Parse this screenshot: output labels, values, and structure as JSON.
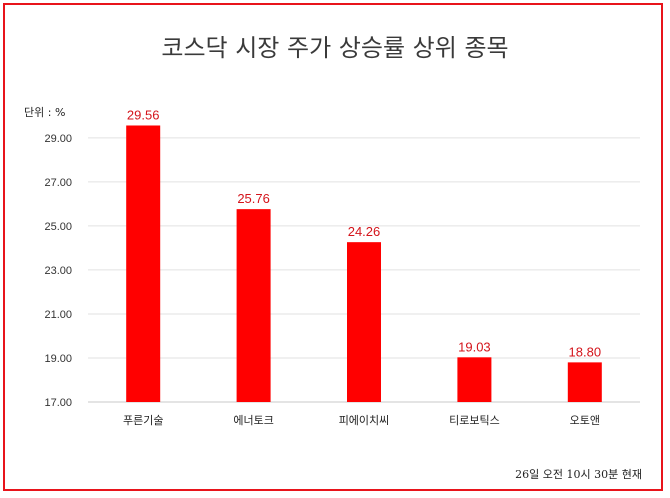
{
  "chart_data": {
    "type": "bar",
    "title": "코스닥 시장 주가 상승률 상위 종목",
    "unit_label": "단위 : %",
    "footnote": "26일 오전 10시 30분 현재",
    "categories": [
      "푸른기술",
      "에너토크",
      "피에이치씨",
      "티로보틱스",
      "오토앤"
    ],
    "values": [
      29.56,
      25.76,
      24.26,
      19.03,
      18.8
    ],
    "value_labels": [
      "29.56",
      "25.76",
      "24.26",
      "19.03",
      "18.80"
    ],
    "ylim": [
      17,
      29.9
    ],
    "yticks": [
      17,
      19,
      21,
      23,
      25,
      27,
      29
    ],
    "ytick_labels": [
      "17.00",
      "19.00",
      "21.00",
      "23.00",
      "25.00",
      "27.00",
      "29.00"
    ],
    "grid": true,
    "bar_color": "#ff0000",
    "label_color": "#d4141b"
  }
}
